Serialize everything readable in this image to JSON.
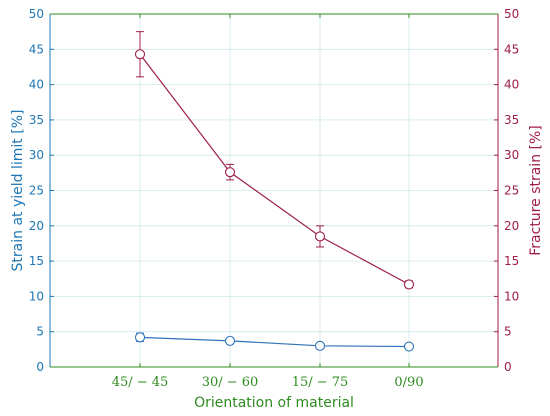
{
  "chart_data": {
    "type": "line",
    "categories": [
      "45/ − 45",
      "30/ − 60",
      "15/ − 75",
      "0/90"
    ],
    "xlabel": "Orientation of material",
    "y_left": {
      "label": "Strain at yield limit [%]",
      "lim": [
        0,
        50
      ],
      "ticks": [
        0,
        5,
        10,
        15,
        20,
        25,
        30,
        35,
        40,
        45,
        50
      ]
    },
    "y_right": {
      "label": "Fracture strain [%]",
      "lim": [
        0,
        50
      ],
      "ticks": [
        0,
        5,
        10,
        15,
        20,
        25,
        30,
        35,
        40,
        45,
        50
      ]
    },
    "grid": true,
    "series": [
      {
        "axis": "left",
        "values": [
          4.2,
          3.7,
          3.0,
          2.9
        ],
        "errors": [
          0.6,
          0.3,
          0.2,
          0.2
        ],
        "color": "#2f72b8"
      },
      {
        "axis": "right",
        "values": [
          44.3,
          27.6,
          18.5,
          11.7
        ],
        "errors": [
          3.2,
          1.1,
          1.5,
          0.5
        ],
        "color": "#9e1f4f"
      }
    ],
    "colors": {
      "left_axis": "#1f77b4",
      "right_axis": "#a01c4a",
      "x_axis": "#2e8b1f",
      "grid": "#cfe8e8"
    }
  }
}
